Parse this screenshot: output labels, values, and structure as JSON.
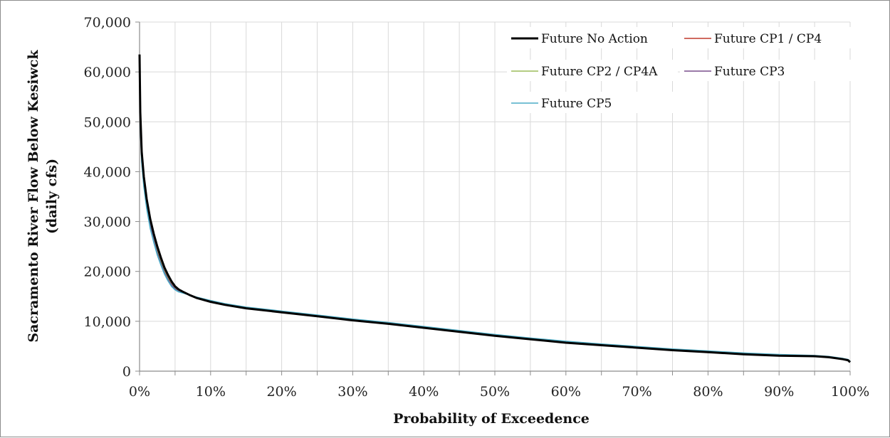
{
  "chart_data": {
    "type": "line",
    "title": "",
    "xlabel": "Probability of Exceedence",
    "ylabel_line1": "Sacramento River Flow Below Kesiwck",
    "ylabel_line2": "(daily cfs)",
    "xlim": [
      0,
      100
    ],
    "ylim": [
      0,
      70000
    ],
    "x_ticks": [
      0,
      10,
      20,
      30,
      40,
      50,
      60,
      70,
      80,
      90,
      100
    ],
    "x_tick_labels": [
      "0%",
      "10%",
      "20%",
      "30%",
      "40%",
      "50%",
      "60%",
      "70%",
      "80%",
      "90%",
      "100%"
    ],
    "y_ticks": [
      0,
      10000,
      20000,
      30000,
      40000,
      50000,
      60000,
      70000
    ],
    "y_tick_labels": [
      "0",
      "10,000",
      "20,000",
      "30,000",
      "40,000",
      "50,000",
      "60,000",
      "70,000"
    ],
    "grid": true,
    "legend_position": "top-right",
    "series": [
      {
        "name": "Future No Action",
        "color": "#000000",
        "x": [
          0,
          0.1,
          0.3,
          0.6,
          1.0,
          1.5,
          2.0,
          2.5,
          3.0,
          3.5,
          4.0,
          4.5,
          5.0,
          5.5,
          6,
          7,
          8,
          10,
          12,
          15,
          20,
          25,
          30,
          35,
          40,
          45,
          50,
          55,
          60,
          65,
          70,
          75,
          80,
          85,
          90,
          95,
          97,
          99,
          99.7,
          100
        ],
        "y": [
          63500,
          52000,
          44000,
          39000,
          34500,
          30500,
          27500,
          25000,
          22800,
          20800,
          19300,
          18000,
          17000,
          16400,
          16000,
          15300,
          14700,
          13900,
          13300,
          12600,
          11800,
          11000,
          10200,
          9500,
          8700,
          7900,
          7100,
          6400,
          5700,
          5200,
          4700,
          4200,
          3800,
          3400,
          3100,
          3000,
          2800,
          2400,
          2200,
          1800
        ]
      },
      {
        "name": "Future CP1 / CP4",
        "color": "#c0392b",
        "x": [
          0,
          0.1,
          0.3,
          0.6,
          1.0,
          1.5,
          2.0,
          2.5,
          3.0,
          3.5,
          4.0,
          4.5,
          5.0,
          5.5,
          6,
          7,
          8,
          10,
          12,
          15,
          20,
          25,
          30,
          35,
          40,
          45,
          50,
          55,
          60,
          65,
          70,
          75,
          80,
          85,
          90,
          95,
          97,
          99,
          99.7,
          100
        ],
        "y": [
          62000,
          50500,
          43000,
          38200,
          33800,
          29800,
          26900,
          24400,
          22300,
          20400,
          18900,
          17700,
          16800,
          16200,
          15900,
          15300,
          14800,
          14000,
          13400,
          12700,
          11900,
          11100,
          10300,
          9600,
          8800,
          8000,
          7200,
          6500,
          5850,
          5300,
          4800,
          4300,
          3900,
          3500,
          3200,
          3050,
          2850,
          2450,
          2250,
          1900
        ]
      },
      {
        "name": "Future CP2 / CP4A",
        "color": "#9bbb59",
        "x": [
          0,
          0.1,
          0.3,
          0.6,
          1.0,
          1.5,
          2.0,
          2.5,
          3.0,
          3.5,
          4.0,
          4.5,
          5.0,
          5.5,
          6,
          7,
          8,
          10,
          12,
          15,
          20,
          25,
          30,
          35,
          40,
          45,
          50,
          55,
          60,
          65,
          70,
          75,
          80,
          85,
          90,
          95,
          97,
          99,
          99.7,
          100
        ],
        "y": [
          61500,
          50000,
          42500,
          37800,
          33400,
          29400,
          26500,
          24000,
          21900,
          20000,
          18600,
          17400,
          16600,
          16100,
          15850,
          15300,
          14800,
          14050,
          13450,
          12750,
          11950,
          11150,
          10350,
          9650,
          8850,
          8050,
          7250,
          6550,
          5900,
          5350,
          4850,
          4350,
          3950,
          3550,
          3250,
          3100,
          2900,
          2500,
          2300,
          1950
        ]
      },
      {
        "name": "Future CP3",
        "color": "#7a4e8c",
        "x": [
          0,
          0.1,
          0.3,
          0.6,
          1.0,
          1.5,
          2.0,
          2.5,
          3.0,
          3.5,
          4.0,
          4.5,
          5.0,
          5.5,
          6,
          7,
          8,
          10,
          12,
          15,
          20,
          25,
          30,
          35,
          40,
          45,
          50,
          55,
          60,
          65,
          70,
          75,
          80,
          85,
          90,
          95,
          97,
          99,
          99.7,
          100
        ],
        "y": [
          61000,
          49500,
          42200,
          37500,
          33100,
          29100,
          26200,
          23700,
          21600,
          19800,
          18400,
          17300,
          16500,
          16000,
          15800,
          15300,
          14800,
          14050,
          13450,
          12750,
          11950,
          11150,
          10350,
          9650,
          8850,
          8050,
          7250,
          6550,
          5900,
          5350,
          4850,
          4350,
          3950,
          3550,
          3250,
          3100,
          2900,
          2500,
          2300,
          1950
        ]
      },
      {
        "name": "Future CP5",
        "color": "#4bacc6",
        "x": [
          0,
          0.1,
          0.3,
          0.6,
          1.0,
          1.5,
          2.0,
          2.5,
          3.0,
          3.5,
          4.0,
          4.5,
          5.0,
          5.5,
          6,
          7,
          8,
          10,
          12,
          15,
          20,
          25,
          30,
          35,
          40,
          45,
          50,
          55,
          60,
          65,
          70,
          75,
          80,
          85,
          90,
          95,
          97,
          99,
          99.7,
          100
        ],
        "y": [
          61000,
          49000,
          41800,
          37000,
          32600,
          28600,
          25800,
          23300,
          21300,
          19500,
          18100,
          17000,
          16300,
          15900,
          15700,
          15300,
          14850,
          14150,
          13550,
          12850,
          12050,
          11250,
          10450,
          9750,
          8950,
          8150,
          7350,
          6650,
          6000,
          5450,
          4950,
          4450,
          4050,
          3650,
          3350,
          3150,
          2950,
          2550,
          2350,
          2000
        ]
      }
    ]
  }
}
